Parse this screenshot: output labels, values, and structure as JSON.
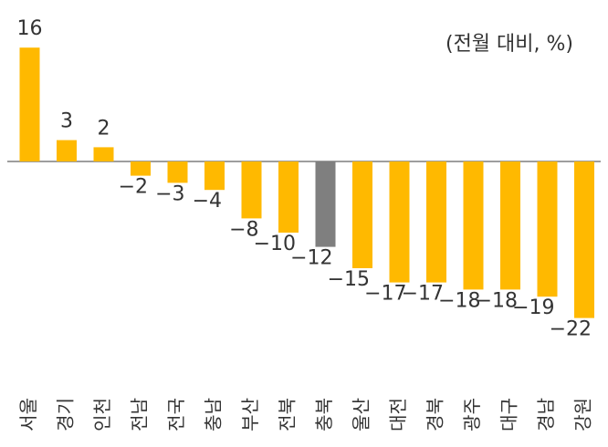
{
  "unit_label": "(전월 대비, %)",
  "colors": {
    "default": "#FFB900",
    "highlight": "#7F7F7F",
    "axis": "#7F7F7F",
    "text": "#333333"
  },
  "chart_data": {
    "type": "bar",
    "title": "",
    "xlabel": "",
    "ylabel": "",
    "categories": [
      "서울",
      "경기",
      "인천",
      "전남",
      "전국",
      "충남",
      "부산",
      "전북",
      "충북",
      "울산",
      "대전",
      "경북",
      "광주",
      "대구",
      "경남",
      "강원"
    ],
    "values": [
      16,
      3,
      2,
      -2,
      -3,
      -4,
      -8,
      -10,
      -12,
      -15,
      -17,
      -17,
      -18,
      -18,
      -19,
      -22
    ],
    "value_labels": [
      "16",
      "3",
      "2",
      "−2",
      "−3",
      "−4",
      "−8",
      "−10",
      "−12",
      "−15",
      "−17",
      "−17",
      "−18",
      "−18",
      "−19",
      "−22"
    ],
    "highlight": [
      "충북"
    ],
    "ylim": [
      -22,
      16
    ],
    "grid": false,
    "legend": "none"
  }
}
